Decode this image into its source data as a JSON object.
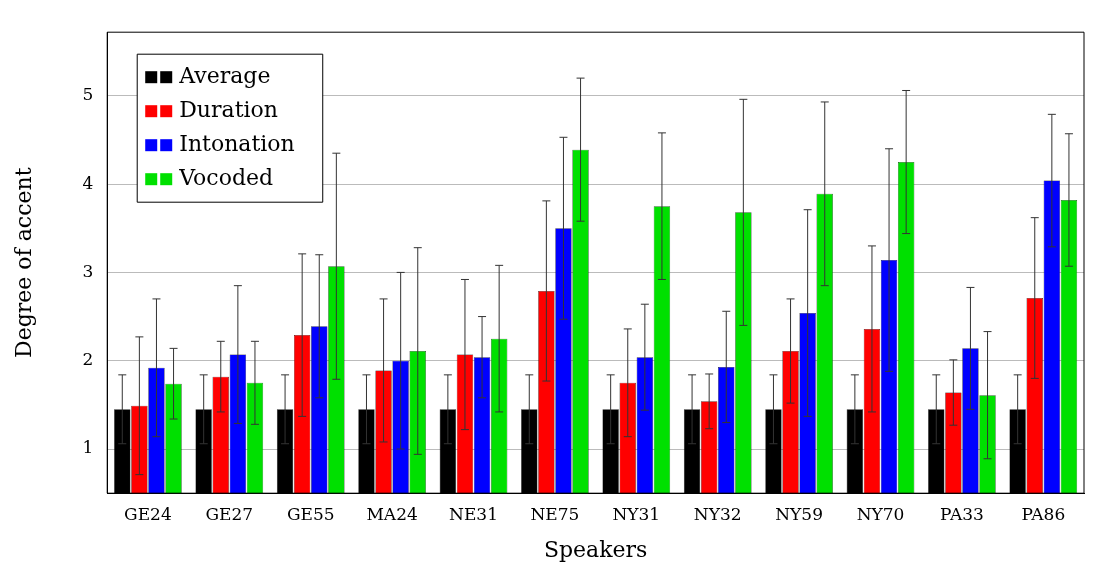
{
  "chart_data": {
    "type": "bar",
    "xlabel": "Speakers",
    "ylabel": "Degree of accent",
    "categories": [
      "GE24",
      "GE27",
      "GE55",
      "MA24",
      "NE31",
      "NE75",
      "NY31",
      "NY32",
      "NY59",
      "NY70",
      "PA33",
      "PA86"
    ],
    "series": [
      {
        "name": "Average",
        "color": "#000000",
        "values": [
          1.45,
          1.45,
          1.45,
          1.45,
          1.45,
          1.45,
          1.45,
          1.45,
          1.45,
          1.45,
          1.45,
          1.45
        ],
        "errors": [
          0.39,
          0.39,
          0.39,
          0.39,
          0.39,
          0.39,
          0.39,
          0.39,
          0.39,
          0.39,
          0.39,
          0.39
        ]
      },
      {
        "name": "Duration",
        "color": "#ff0000",
        "values": [
          1.49,
          1.82,
          2.29,
          1.89,
          2.07,
          2.79,
          1.75,
          1.54,
          2.11,
          2.36,
          1.64,
          2.71
        ],
        "errors": [
          0.78,
          0.4,
          0.92,
          0.81,
          0.85,
          1.02,
          0.61,
          0.31,
          0.59,
          0.94,
          0.37,
          0.91
        ]
      },
      {
        "name": "Intonation",
        "color": "#0000ff",
        "values": [
          1.92,
          2.07,
          2.39,
          2.0,
          2.04,
          3.5,
          2.04,
          1.93,
          2.54,
          3.14,
          2.14,
          4.04
        ],
        "errors": [
          0.78,
          0.78,
          0.81,
          1.0,
          0.46,
          1.03,
          0.6,
          0.63,
          1.17,
          1.26,
          0.69,
          0.75
        ]
      },
      {
        "name": "Vocoded",
        "color": "#00e000",
        "values": [
          1.74,
          1.75,
          3.07,
          2.11,
          2.25,
          4.39,
          3.75,
          3.68,
          3.89,
          4.25,
          1.61,
          3.82
        ],
        "errors": [
          0.4,
          0.47,
          1.28,
          1.17,
          0.83,
          0.81,
          0.83,
          1.28,
          1.04,
          0.81,
          0.72,
          0.75
        ]
      }
    ],
    "ylim": [
      0.5,
      5.72
    ],
    "yticks": [
      1,
      2,
      3,
      4,
      5
    ],
    "grid": "y",
    "legend": "top left"
  }
}
